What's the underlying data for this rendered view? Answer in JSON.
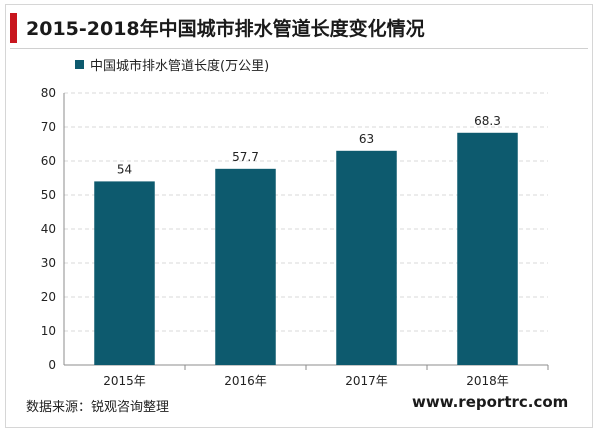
{
  "page": {
    "title": "2015-2018年中国城市排水管道长度变化情况",
    "source": "数据来源：锐观咨询整理",
    "website": "www.reportrc.com"
  },
  "colors": {
    "accent": "#c8161e",
    "bar": "#0d5a6e",
    "grid": "#d9d9d9"
  },
  "chart_data": {
    "type": "bar",
    "categories": [
      "2015年",
      "2016年",
      "2017年",
      "2018年"
    ],
    "series": [
      {
        "name": "中国城市排水管道长度(万公里)",
        "values": [
          54,
          57.7,
          63,
          68.3
        ]
      }
    ],
    "data_labels": [
      "54",
      "57.7",
      "63",
      "68.3"
    ],
    "ylim": [
      0,
      80
    ],
    "yticks": [
      0,
      10,
      20,
      30,
      40,
      50,
      60,
      70,
      80
    ],
    "ytick_labels": [
      "0",
      "10",
      "20",
      "30",
      "40",
      "50",
      "60",
      "70",
      "80"
    ],
    "title": "2015-2018年中国城市排水管道长度变化情况",
    "xlabel": "",
    "ylabel": "",
    "grid": true,
    "legend_position": "top-left"
  }
}
